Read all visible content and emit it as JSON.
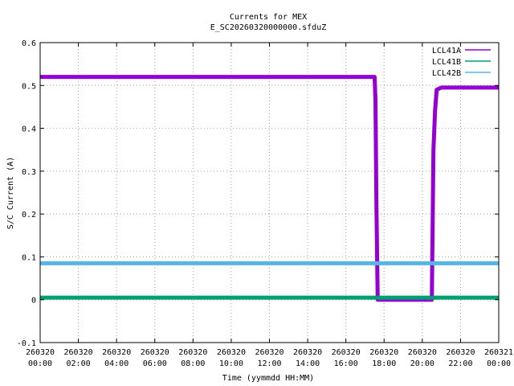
{
  "chart_data": {
    "type": "line",
    "title": "Currents for MEX",
    "subtitle": "E_SC20260320000000.sfduZ",
    "xlabel": "Time (yymmdd HH:MM)",
    "ylabel": "S/C Current (A)",
    "xlim": [
      "2026-03-20 00:00",
      "2026-03-21 00:00"
    ],
    "ylim": [
      -0.1,
      0.6
    ],
    "grid": true,
    "legend_position": "top-right",
    "yticks": [
      "-0.1",
      "0",
      "0.1",
      "0.2",
      "0.3",
      "0.4",
      "0.5",
      "0.6"
    ],
    "xticks": [
      {
        "date": "260320",
        "time": "00:00"
      },
      {
        "date": "260320",
        "time": "02:00"
      },
      {
        "date": "260320",
        "time": "04:00"
      },
      {
        "date": "260320",
        "time": "06:00"
      },
      {
        "date": "260320",
        "time": "08:00"
      },
      {
        "date": "260320",
        "time": "10:00"
      },
      {
        "date": "260320",
        "time": "12:00"
      },
      {
        "date": "260320",
        "time": "14:00"
      },
      {
        "date": "260320",
        "time": "16:00"
      },
      {
        "date": "260320",
        "time": "18:00"
      },
      {
        "date": "260320",
        "time": "20:00"
      },
      {
        "date": "260320",
        "time": "22:00"
      },
      {
        "date": "260321",
        "time": "00:00"
      }
    ],
    "series": [
      {
        "name": "LCL41A",
        "color": "#9400d3",
        "x": [
          "2026-03-20 00:00",
          "2026-03-20 17:30",
          "2026-03-20 17:33",
          "2026-03-20 17:36",
          "2026-03-20 17:40",
          "2026-03-20 20:30",
          "2026-03-20 20:35",
          "2026-03-20 20:40",
          "2026-03-20 20:45",
          "2026-03-20 21:00",
          "2026-03-21 00:00"
        ],
        "values": [
          0.52,
          0.52,
          0.47,
          0.22,
          0.0,
          0.0,
          0.35,
          0.44,
          0.49,
          0.495,
          0.495
        ]
      },
      {
        "name": "LCL41B",
        "color": "#009e73",
        "x": [
          "2026-03-20 00:00",
          "2026-03-21 00:00"
        ],
        "values": [
          0.005,
          0.005
        ]
      },
      {
        "name": "LCL42B",
        "color": "#56b4e9",
        "x": [
          "2026-03-20 00:00",
          "2026-03-21 00:00"
        ],
        "values": [
          0.085,
          0.085
        ]
      }
    ]
  }
}
